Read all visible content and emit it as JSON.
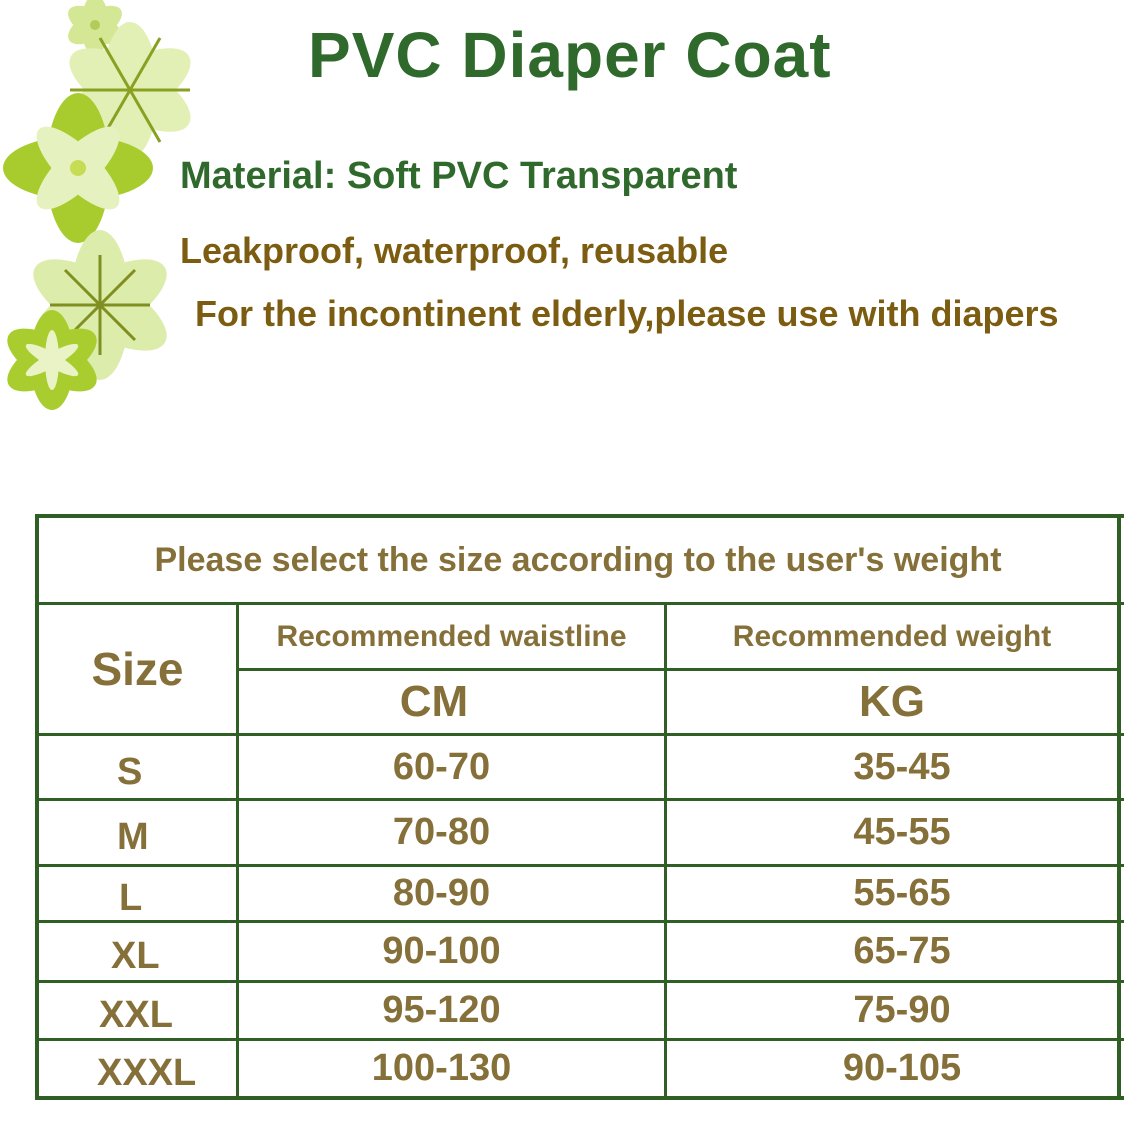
{
  "title": "PVC Diaper Coat",
  "lines": {
    "material": "Material: Soft PVC  Transparent",
    "features": "Leakproof, waterproof, reusable",
    "usage": "For the incontinent elderly,please use with diapers"
  },
  "colors": {
    "title": "#2f6a2c",
    "subtitle": "#7b5c10",
    "table_text": "#86703a",
    "table_border": "#2f5f24"
  },
  "table": {
    "caption": "Please select the size according to the user's weight",
    "headers": {
      "size": "Size",
      "waist": "Recommended waistline",
      "weight": "Recommended weight",
      "waist_unit": "CM",
      "weight_unit": "KG"
    },
    "rows": [
      {
        "size": "S",
        "waist": "60-70",
        "weight": "35-45"
      },
      {
        "size": "M",
        "waist": "70-80",
        "weight": "45-55"
      },
      {
        "size": "L",
        "waist": "80-90",
        "weight": "55-65"
      },
      {
        "size": "XL",
        "waist": "90-100",
        "weight": "65-75"
      },
      {
        "size": "XXL",
        "waist": "95-120",
        "weight": "75-90"
      },
      {
        "size": "XXXL",
        "waist": "100-130",
        "weight": "90-105"
      }
    ]
  }
}
